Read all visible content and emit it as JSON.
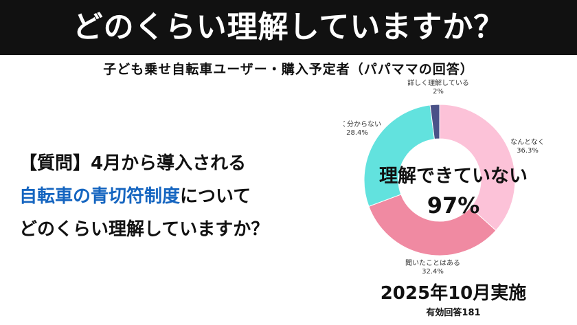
{
  "banner": {
    "title": "どのくらい理解していますか？"
  },
  "subtitle": "子ども乗せ自転車ユーザー・購入予定者（パパママの回答）",
  "question": {
    "line1": "【質問】4月から導入される",
    "line2_highlight": "自転車の青切符制度",
    "line2_rest": "について",
    "line3": "どのくらい理解していますか？"
  },
  "chart_center": {
    "label": "理解できていない",
    "percent": "97%"
  },
  "footer": {
    "date": "2025年10月実施",
    "note": "有効回答181"
  },
  "colors": {
    "accent": "#1565c0",
    "banner": "#111111"
  },
  "chart_data": {
    "type": "pie",
    "labels": [
      "なんとなく",
      "聞いたことはある",
      "全く分からない",
      "詳しく理解している"
    ],
    "values": [
      36.3,
      32.4,
      28.4,
      2
    ],
    "value_labels": [
      "36.3%",
      "32.4%",
      "28.4%",
      "2%"
    ],
    "colors": [
      "#fcc2d8",
      "#f08aa2",
      "#62e2de",
      "#4a5288"
    ],
    "donut": true
  }
}
